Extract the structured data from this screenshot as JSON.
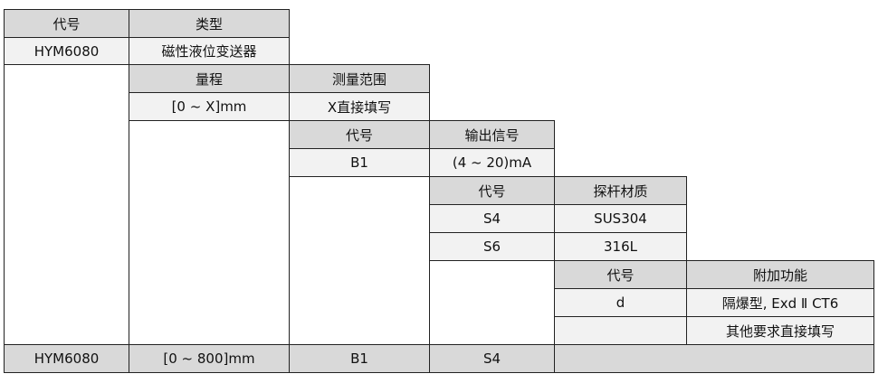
{
  "model_block": {
    "code_header": "代号",
    "type_header": "类型",
    "code": "HYM6080",
    "type": "磁性液位变送器"
  },
  "range_block": {
    "header_range": "量程",
    "header_measure": "测量范围",
    "range_value": "[0 ~ X]mm",
    "measure_value": "X直接填写"
  },
  "output_block": {
    "code_header": "代号",
    "output_header": "输出信号",
    "code": "B1",
    "output": "(4 ~ 20)mA"
  },
  "probe_block": {
    "code_header": "代号",
    "material_header": "探杆材质",
    "rows": [
      {
        "code": "S4",
        "material": "SUS304"
      },
      {
        "code": "S6",
        "material": "316L"
      }
    ]
  },
  "extra_block": {
    "code_header": "代号",
    "function_header": "附加功能",
    "rows": [
      {
        "code": "d",
        "function": "隔爆型, Exd Ⅱ CT6"
      },
      {
        "code": "",
        "function": "其他要求直接填写"
      }
    ]
  },
  "example_row": {
    "model": "HYM6080",
    "range": "[0 ~ 800]mm",
    "output": "B1",
    "probe": "S4",
    "extra": ""
  }
}
